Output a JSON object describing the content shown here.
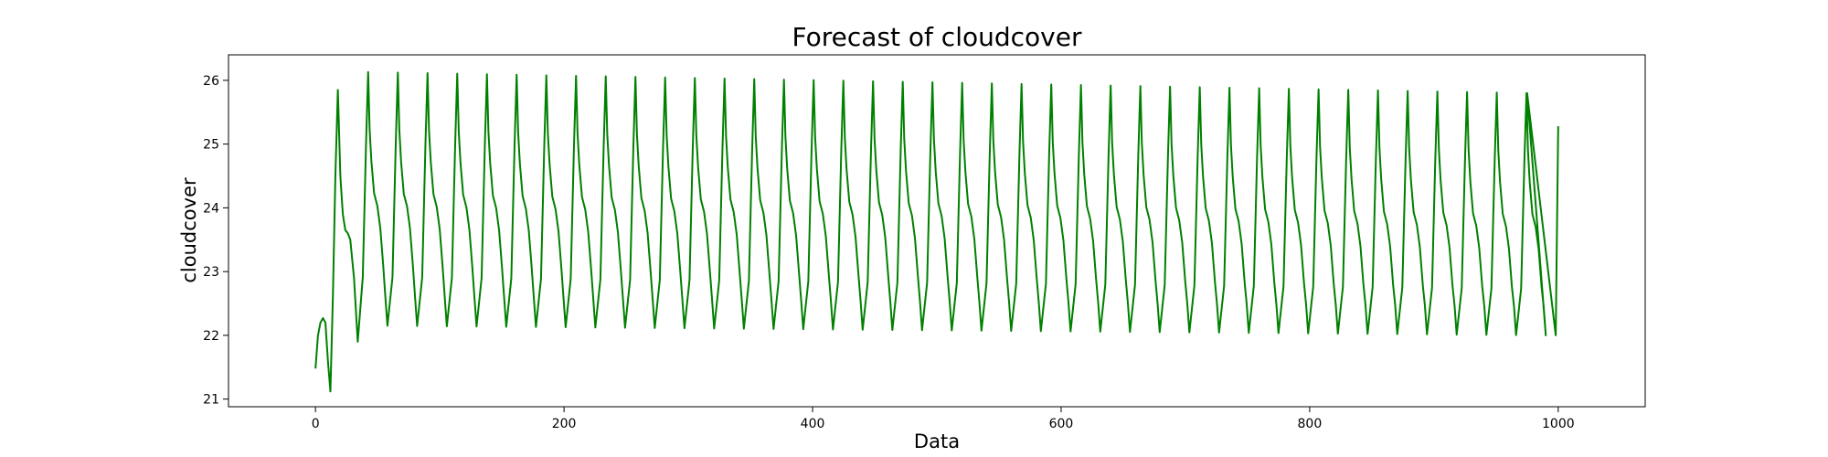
{
  "chart_data": {
    "type": "line",
    "title": "Forecast of cloudcover",
    "xlabel": "Data",
    "ylabel": "cloudcover",
    "xlim": [
      -70,
      1070
    ],
    "ylim": [
      20.88,
      26.4
    ],
    "xticks": [
      0,
      200,
      400,
      600,
      800,
      1000
    ],
    "yticks": [
      21,
      22,
      23,
      24,
      25,
      26
    ],
    "grid": false,
    "legend": "none",
    "line_color": "#008000",
    "series": [
      {
        "start_points": [
          [
            0,
            21.48
          ],
          [
            2,
            22.0
          ],
          [
            4,
            22.2
          ],
          [
            6,
            22.27
          ],
          [
            8,
            22.2
          ],
          [
            10,
            21.6
          ],
          [
            12,
            21.12
          ],
          [
            14,
            22.6
          ],
          [
            16,
            24.5
          ],
          [
            18,
            25.85
          ],
          [
            20,
            24.5
          ],
          [
            22,
            23.9
          ],
          [
            24,
            23.65
          ],
          [
            26,
            23.6
          ],
          [
            28,
            23.5
          ],
          [
            31,
            22.9
          ],
          [
            34,
            21.9
          ]
        ],
        "cycle": {
          "start": 34,
          "period": 23.9,
          "count": 40,
          "end_x": 998,
          "peak_first": 26.13,
          "peak_last": 25.8,
          "trough_first": 22.15,
          "trough_last": 22.0
        },
        "end_points": [
          [
            975,
            25.8
          ],
          [
            998,
            22.0
          ],
          [
            1000,
            25.28
          ]
        ]
      }
    ]
  }
}
